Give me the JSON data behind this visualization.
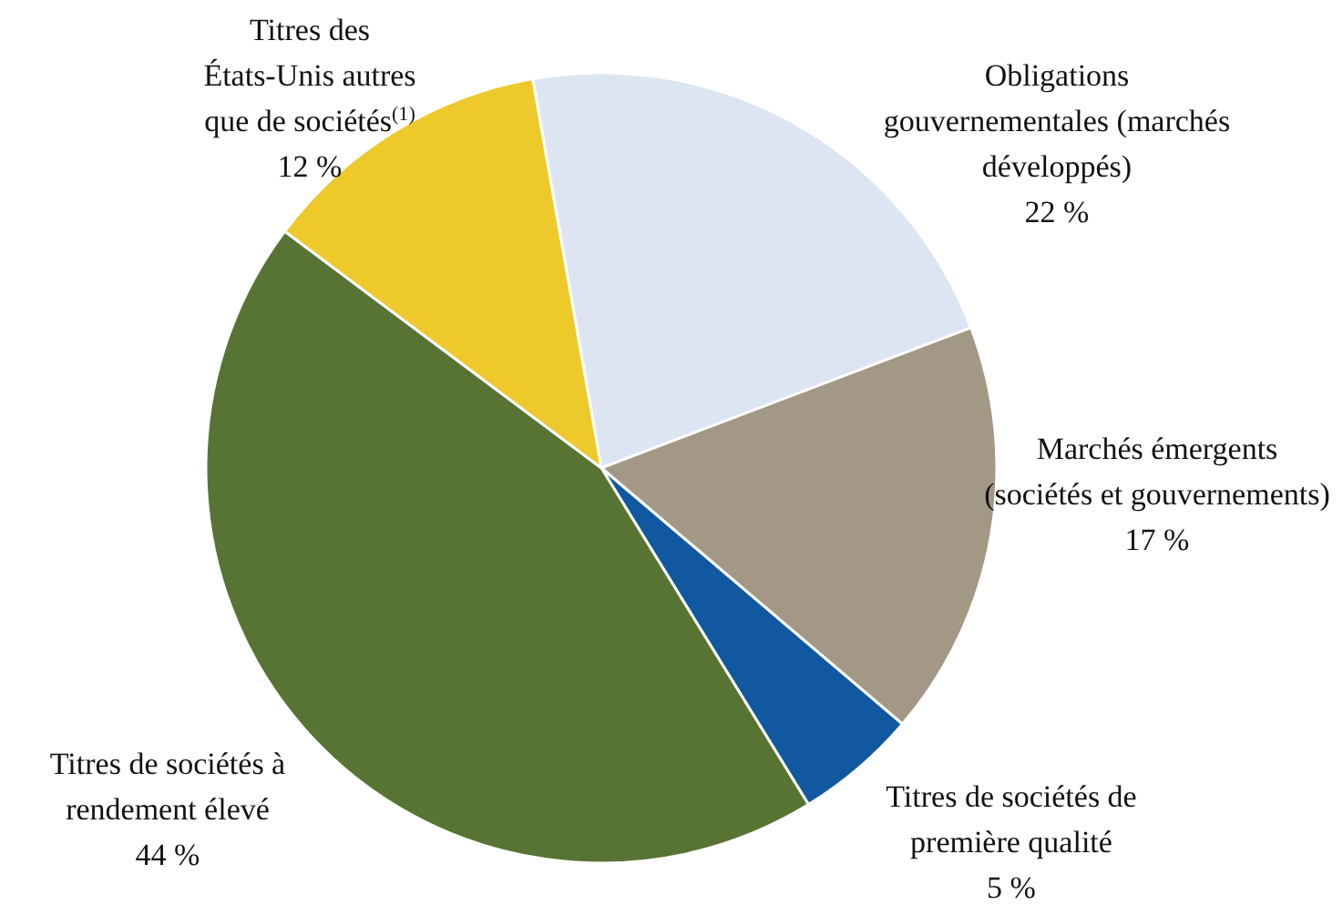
{
  "chart_data": {
    "type": "pie",
    "categories": [
      "Obligations gouvernementales (marchés développés)",
      "Marchés émergents (sociétés et gouvernements)",
      "Titres de sociétés de première qualité",
      "Titres de sociétés à rendement élevé",
      "Titres des États-Unis autres que de sociétés$^{(1)}$"
    ],
    "values": [
      22,
      17,
      5,
      44,
      12
    ],
    "value_labels": [
      "22 %",
      "17 %",
      "5 %",
      "44 %",
      "12 %"
    ],
    "colors": [
      "#dde5f2",
      "#a39886",
      "#1158a0",
      "#587434",
      "#eec92c"
    ]
  }
}
